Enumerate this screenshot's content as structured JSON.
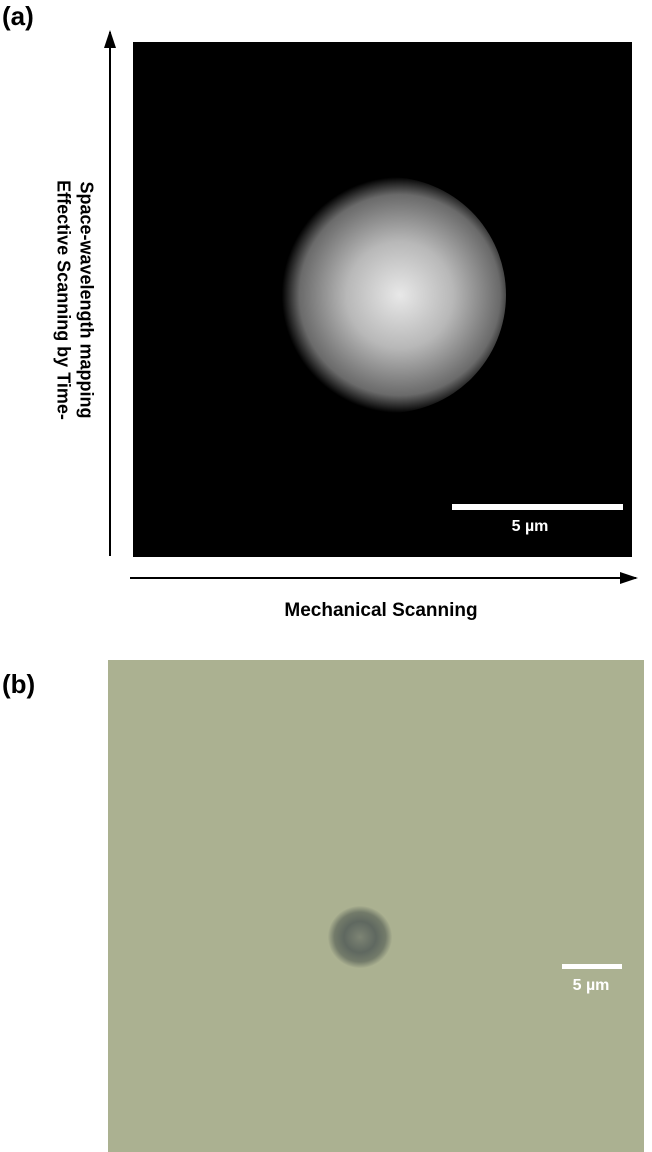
{
  "panel_a": {
    "label": "(a)",
    "y_axis_label": [
      "Effective Scanning by Time-",
      "Space-wavelength mapping"
    ],
    "x_axis_label": "Mechanical Scanning",
    "scale_bar": "5 µm"
  },
  "panel_b": {
    "label": "(b)",
    "scale_bar": "5 µm"
  }
}
